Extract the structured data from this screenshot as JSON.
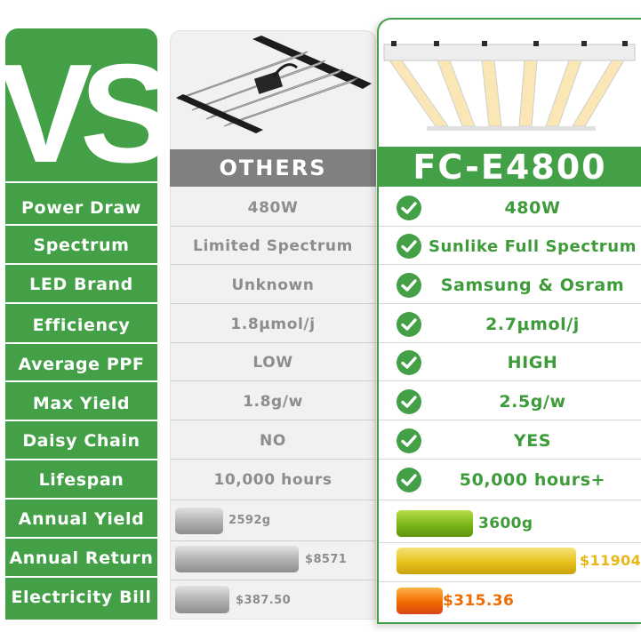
{
  "logo": {
    "text": "VS"
  },
  "rows": [
    {
      "label": "Power Draw",
      "others": "480W",
      "fc": "480W"
    },
    {
      "label": "Spectrum",
      "others": "Limited Spectrum",
      "fc": "Sunlike Full Spectrum"
    },
    {
      "label": "LED Brand",
      "others": "Unknown",
      "fc": "Samsung & Osram"
    },
    {
      "label": "Efficiency",
      "others": "1.8μmol/j",
      "fc": "2.7μmol/j"
    },
    {
      "label": "Average PPF",
      "others": "LOW",
      "fc": "HIGH"
    },
    {
      "label": "Max Yield",
      "others": "1.8g/w",
      "fc": "2.5g/w"
    },
    {
      "label": "Daisy Chain",
      "others": "NO",
      "fc": "YES"
    },
    {
      "label": "Lifespan",
      "others": "10,000 hours",
      "fc": "50,000 hours+"
    }
  ],
  "bar_rows": [
    {
      "label": "Annual Yield",
      "others": "2592g",
      "fc": "3600g"
    },
    {
      "label": "Annual Return",
      "others": "$8571",
      "fc": "$11904"
    },
    {
      "label": "Electricity Bill",
      "others": "$387.50",
      "fc": "$315.36"
    }
  ],
  "bar_fractions": {
    "annual_yield": {
      "others": 0.72,
      "fc": 1.0
    },
    "annual_return": {
      "others": 0.72,
      "fc": 1.0
    },
    "electricity": {
      "others": 1.0,
      "fc": 0.81
    }
  },
  "headers": {
    "others": "OTHERS",
    "product": "FC-E4800"
  },
  "colors": {
    "brand_green": "#43a047",
    "others_gray": "#808080",
    "yield_bar": "#7cb518",
    "return_bar": "#e8c21a",
    "bill_bar": "#ef6c00",
    "return_text": "#e8b71a",
    "bill_text": "#ef6c00"
  },
  "icons": {
    "check": "check-circle-icon"
  }
}
